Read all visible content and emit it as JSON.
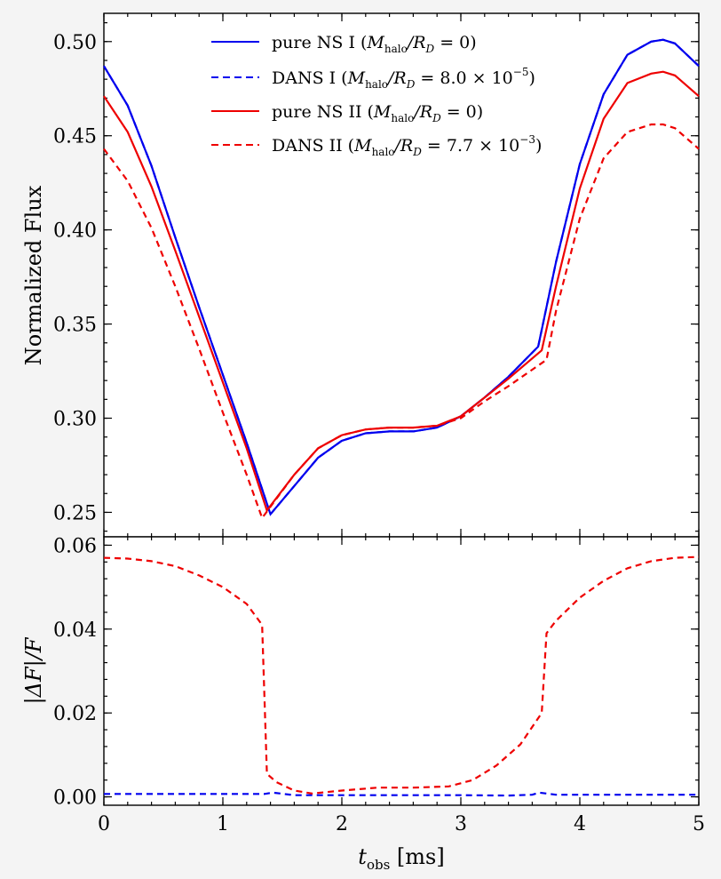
{
  "chart_data": [
    {
      "panel": "top",
      "type": "line",
      "title": "",
      "xlabel": "",
      "ylabel": "Normalized Flux",
      "xlim": [
        0,
        5
      ],
      "ylim": [
        0.237,
        0.515
      ],
      "xticks": [
        0,
        1,
        2,
        3,
        4,
        5
      ],
      "yticks": [
        0.25,
        0.3,
        0.35,
        0.4,
        0.45,
        0.5
      ],
      "ytick_labels": [
        "0.25",
        "0.30",
        "0.35",
        "0.40",
        "0.45",
        "0.50"
      ],
      "grid": false,
      "legend_position": "top-center",
      "series": [
        {
          "name": "pure NS I",
          "legend_label": "pure NS I (M_halo/R_D = 0)",
          "legend_main": "pure NS I (",
          "legend_param": "M",
          "legend_sub": "halo",
          "legend_rest": "/R",
          "legend_sub2": "D",
          "legend_value": " = 0)",
          "legend_exp": "",
          "legend_tail": "",
          "color": "#0000ee",
          "dash": "solid",
          "x": [
            0,
            0.2,
            0.4,
            0.6,
            0.8,
            1.0,
            1.2,
            1.4,
            1.6,
            1.8,
            2.0,
            2.2,
            2.4,
            2.6,
            2.8,
            3.0,
            3.2,
            3.4,
            3.65,
            3.8,
            4.0,
            4.2,
            4.4,
            4.6,
            4.7,
            4.8,
            5.0
          ],
          "y": [
            0.487,
            0.466,
            0.434,
            0.396,
            0.359,
            0.323,
            0.287,
            0.249,
            0.264,
            0.279,
            0.288,
            0.292,
            0.293,
            0.293,
            0.295,
            0.301,
            0.311,
            0.322,
            0.338,
            0.383,
            0.435,
            0.472,
            0.493,
            0.5,
            0.501,
            0.499,
            0.487
          ]
        },
        {
          "name": "DANS I",
          "legend_label": "DANS I (M_halo/R_D = 8.0 × 10^-5)",
          "legend_main": "DANS I (",
          "legend_param": "M",
          "legend_sub": "halo",
          "legend_rest": "/R",
          "legend_sub2": "D",
          "legend_value": " = 8.0 × 10",
          "legend_exp": "−5",
          "legend_tail": ")",
          "color": "#0000ee",
          "dash": "dashed",
          "x": [
            0,
            0.2,
            0.4,
            0.6,
            0.8,
            1.0,
            1.2,
            1.4,
            1.6,
            1.8,
            2.0,
            2.2,
            2.4,
            2.6,
            2.8,
            3.0,
            3.2,
            3.4,
            3.65,
            3.8,
            4.0,
            4.2,
            4.4,
            4.6,
            4.7,
            4.8,
            5.0
          ],
          "y": [
            0.487,
            0.466,
            0.434,
            0.396,
            0.359,
            0.323,
            0.287,
            0.249,
            0.264,
            0.279,
            0.288,
            0.292,
            0.293,
            0.293,
            0.295,
            0.301,
            0.311,
            0.322,
            0.338,
            0.383,
            0.435,
            0.472,
            0.493,
            0.5,
            0.501,
            0.499,
            0.487
          ]
        },
        {
          "name": "pure NS II",
          "legend_label": "pure NS II (M_halo/R_D = 0)",
          "legend_main": "pure NS II (",
          "legend_param": "M",
          "legend_sub": "halo",
          "legend_rest": "/R",
          "legend_sub2": "D",
          "legend_value": " = 0)",
          "legend_exp": "",
          "legend_tail": "",
          "color": "#ee0000",
          "dash": "solid",
          "x": [
            0,
            0.2,
            0.4,
            0.6,
            0.8,
            1.0,
            1.2,
            1.37,
            1.6,
            1.8,
            2.0,
            2.2,
            2.4,
            2.6,
            2.8,
            3.0,
            3.2,
            3.4,
            3.68,
            3.8,
            4.0,
            4.2,
            4.4,
            4.6,
            4.7,
            4.8,
            5.0
          ],
          "y": [
            0.471,
            0.452,
            0.423,
            0.389,
            0.354,
            0.319,
            0.284,
            0.251,
            0.27,
            0.284,
            0.291,
            0.294,
            0.295,
            0.295,
            0.296,
            0.301,
            0.311,
            0.321,
            0.336,
            0.37,
            0.422,
            0.459,
            0.478,
            0.483,
            0.484,
            0.482,
            0.471
          ]
        },
        {
          "name": "DANS II",
          "legend_label": "DANS II (M_halo/R_D = 7.7 × 10^-3)",
          "legend_main": "DANS II (",
          "legend_param": "M",
          "legend_sub": "halo",
          "legend_rest": "/R",
          "legend_sub2": "D",
          "legend_value": " = 7.7 × 10",
          "legend_exp": "−3",
          "legend_tail": ")",
          "color": "#ee0000",
          "dash": "dashed",
          "x": [
            0,
            0.2,
            0.4,
            0.6,
            0.8,
            1.0,
            1.2,
            1.33,
            1.6,
            1.8,
            2.0,
            2.2,
            2.4,
            2.6,
            2.8,
            3.0,
            3.2,
            3.4,
            3.72,
            3.8,
            4.0,
            4.2,
            4.4,
            4.6,
            4.7,
            4.8,
            5.0
          ],
          "y": [
            0.443,
            0.426,
            0.401,
            0.37,
            0.337,
            0.303,
            0.27,
            0.247,
            0.27,
            0.284,
            0.291,
            0.294,
            0.295,
            0.295,
            0.296,
            0.3,
            0.309,
            0.317,
            0.331,
            0.357,
            0.406,
            0.438,
            0.452,
            0.456,
            0.456,
            0.454,
            0.443
          ]
        }
      ]
    },
    {
      "panel": "bottom",
      "type": "line",
      "title": "",
      "xlabel": "t_obs [ms]",
      "xlabel_main": "t",
      "xlabel_sub": "obs",
      "xlabel_unit": " [ms]",
      "ylabel": "|ΔF|/F",
      "xlim": [
        0,
        5
      ],
      "ylim": [
        -0.002,
        0.062
      ],
      "xticks": [
        0,
        1,
        2,
        3,
        4,
        5
      ],
      "xtick_labels": [
        "0",
        "1",
        "2",
        "3",
        "4",
        "5"
      ],
      "yticks": [
        0.0,
        0.02,
        0.04,
        0.06
      ],
      "ytick_labels": [
        "0.00",
        "0.02",
        "0.04",
        "0.06"
      ],
      "grid": false,
      "series": [
        {
          "name": "DANS I residual",
          "color": "#0000ee",
          "dash": "dashed",
          "x": [
            0,
            0.5,
            1.0,
            1.35,
            1.42,
            1.6,
            2.0,
            2.5,
            3.0,
            3.4,
            3.6,
            3.66,
            3.8,
            4.5,
            5.0
          ],
          "y": [
            0.0007,
            0.0007,
            0.0007,
            0.0007,
            0.001,
            0.0004,
            0.0004,
            0.0004,
            0.0004,
            0.0003,
            0.0005,
            0.001,
            0.0005,
            0.0005,
            0.0005
          ]
        },
        {
          "name": "DANS II residual",
          "color": "#ee0000",
          "dash": "dashed",
          "x": [
            0,
            0.2,
            0.4,
            0.6,
            0.8,
            1.0,
            1.2,
            1.33,
            1.37,
            1.45,
            1.6,
            1.75,
            2.0,
            2.3,
            2.6,
            2.9,
            3.1,
            3.3,
            3.5,
            3.68,
            3.72,
            3.8,
            4.0,
            4.2,
            4.4,
            4.6,
            4.8,
            5.0
          ],
          "y": [
            0.057,
            0.0568,
            0.0562,
            0.055,
            0.0528,
            0.05,
            0.046,
            0.041,
            0.0055,
            0.0035,
            0.0015,
            0.0008,
            0.0015,
            0.0022,
            0.0022,
            0.0025,
            0.004,
            0.0075,
            0.0125,
            0.02,
            0.039,
            0.042,
            0.0475,
            0.0515,
            0.0545,
            0.0562,
            0.057,
            0.0572
          ]
        }
      ]
    }
  ]
}
